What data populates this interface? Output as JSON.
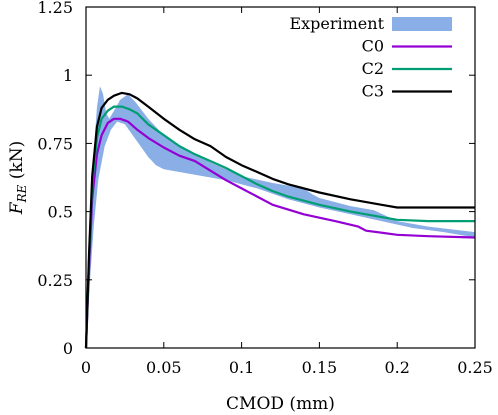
{
  "chart_data": {
    "type": "line",
    "xlabel": "CMOD (mm)",
    "ylabel": {
      "base": "F",
      "subscript": "RE",
      "suffix": " (kN)"
    },
    "xlim": [
      0,
      0.25
    ],
    "ylim": [
      0,
      1.25
    ],
    "xticks": [
      "0",
      "0.05",
      "0.1",
      "0.15",
      "0.2",
      "0.25"
    ],
    "xtick_values": [
      0,
      0.05,
      0.1,
      0.15,
      0.2,
      0.25
    ],
    "yticks": [
      "0",
      "0.25",
      "0.5",
      "0.75",
      "1",
      "1.25"
    ],
    "ytick_values": [
      0,
      0.25,
      0.5,
      0.75,
      1,
      1.25
    ],
    "grid": false,
    "legend_position": "top-right",
    "band": {
      "name": "Experiment",
      "color": "#8aaee6",
      "upper": [
        [
          0,
          0
        ],
        [
          0.002,
          0.35
        ],
        [
          0.005,
          0.72
        ],
        [
          0.007,
          0.88
        ],
        [
          0.009,
          0.96
        ],
        [
          0.011,
          0.93
        ],
        [
          0.013,
          0.86
        ],
        [
          0.015,
          0.84
        ],
        [
          0.018,
          0.87
        ],
        [
          0.022,
          0.91
        ],
        [
          0.027,
          0.93
        ],
        [
          0.032,
          0.9
        ],
        [
          0.04,
          0.84
        ],
        [
          0.05,
          0.78
        ],
        [
          0.06,
          0.74
        ],
        [
          0.08,
          0.68
        ],
        [
          0.1,
          0.63
        ],
        [
          0.12,
          0.605
        ],
        [
          0.14,
          0.585
        ],
        [
          0.145,
          0.565
        ],
        [
          0.15,
          0.55
        ],
        [
          0.17,
          0.52
        ],
        [
          0.185,
          0.505
        ],
        [
          0.2,
          0.465
        ],
        [
          0.22,
          0.445
        ],
        [
          0.25,
          0.425
        ]
      ],
      "lower": [
        [
          0,
          0
        ],
        [
          0.002,
          0.2
        ],
        [
          0.005,
          0.45
        ],
        [
          0.008,
          0.62
        ],
        [
          0.012,
          0.74
        ],
        [
          0.016,
          0.8
        ],
        [
          0.02,
          0.83
        ],
        [
          0.025,
          0.82
        ],
        [
          0.03,
          0.78
        ],
        [
          0.035,
          0.74
        ],
        [
          0.04,
          0.7
        ],
        [
          0.045,
          0.67
        ],
        [
          0.05,
          0.655
        ],
        [
          0.06,
          0.645
        ],
        [
          0.07,
          0.635
        ],
        [
          0.09,
          0.615
        ],
        [
          0.11,
          0.585
        ],
        [
          0.13,
          0.545
        ],
        [
          0.15,
          0.515
        ],
        [
          0.17,
          0.49
        ],
        [
          0.19,
          0.465
        ],
        [
          0.21,
          0.44
        ],
        [
          0.23,
          0.425
        ],
        [
          0.25,
          0.405
        ]
      ]
    },
    "series": [
      {
        "name": "C0",
        "color": "#9400d3",
        "points": [
          [
            0,
            0
          ],
          [
            0.002,
            0.3
          ],
          [
            0.004,
            0.55
          ],
          [
            0.007,
            0.71
          ],
          [
            0.01,
            0.78
          ],
          [
            0.014,
            0.825
          ],
          [
            0.018,
            0.84
          ],
          [
            0.022,
            0.84
          ],
          [
            0.027,
            0.83
          ],
          [
            0.033,
            0.8
          ],
          [
            0.04,
            0.77
          ],
          [
            0.05,
            0.735
          ],
          [
            0.06,
            0.705
          ],
          [
            0.07,
            0.685
          ],
          [
            0.08,
            0.65
          ],
          [
            0.09,
            0.615
          ],
          [
            0.1,
            0.585
          ],
          [
            0.11,
            0.555
          ],
          [
            0.12,
            0.525
          ],
          [
            0.14,
            0.49
          ],
          [
            0.16,
            0.465
          ],
          [
            0.175,
            0.445
          ],
          [
            0.18,
            0.43
          ],
          [
            0.2,
            0.415
          ],
          [
            0.22,
            0.41
          ],
          [
            0.25,
            0.405
          ]
        ]
      },
      {
        "name": "C2",
        "color": "#009e73",
        "points": [
          [
            0,
            0
          ],
          [
            0.002,
            0.33
          ],
          [
            0.004,
            0.6
          ],
          [
            0.007,
            0.77
          ],
          [
            0.01,
            0.84
          ],
          [
            0.014,
            0.87
          ],
          [
            0.018,
            0.885
          ],
          [
            0.023,
            0.885
          ],
          [
            0.028,
            0.875
          ],
          [
            0.033,
            0.86
          ],
          [
            0.04,
            0.82
          ],
          [
            0.05,
            0.78
          ],
          [
            0.06,
            0.74
          ],
          [
            0.07,
            0.71
          ],
          [
            0.08,
            0.685
          ],
          [
            0.09,
            0.66
          ],
          [
            0.1,
            0.63
          ],
          [
            0.11,
            0.6
          ],
          [
            0.12,
            0.575
          ],
          [
            0.13,
            0.555
          ],
          [
            0.15,
            0.525
          ],
          [
            0.17,
            0.5
          ],
          [
            0.19,
            0.48
          ],
          [
            0.2,
            0.47
          ],
          [
            0.22,
            0.465
          ],
          [
            0.25,
            0.465
          ]
        ]
      },
      {
        "name": "C3",
        "color": "#000000",
        "points": [
          [
            0,
            0
          ],
          [
            0.002,
            0.35
          ],
          [
            0.004,
            0.63
          ],
          [
            0.007,
            0.81
          ],
          [
            0.01,
            0.88
          ],
          [
            0.014,
            0.91
          ],
          [
            0.018,
            0.925
          ],
          [
            0.023,
            0.935
          ],
          [
            0.028,
            0.93
          ],
          [
            0.033,
            0.915
          ],
          [
            0.04,
            0.885
          ],
          [
            0.05,
            0.84
          ],
          [
            0.06,
            0.8
          ],
          [
            0.07,
            0.765
          ],
          [
            0.08,
            0.74
          ],
          [
            0.09,
            0.7
          ],
          [
            0.1,
            0.67
          ],
          [
            0.11,
            0.645
          ],
          [
            0.12,
            0.62
          ],
          [
            0.13,
            0.6
          ],
          [
            0.15,
            0.57
          ],
          [
            0.17,
            0.545
          ],
          [
            0.18,
            0.535
          ],
          [
            0.19,
            0.525
          ],
          [
            0.2,
            0.515
          ],
          [
            0.22,
            0.515
          ],
          [
            0.25,
            0.515
          ]
        ]
      }
    ]
  }
}
